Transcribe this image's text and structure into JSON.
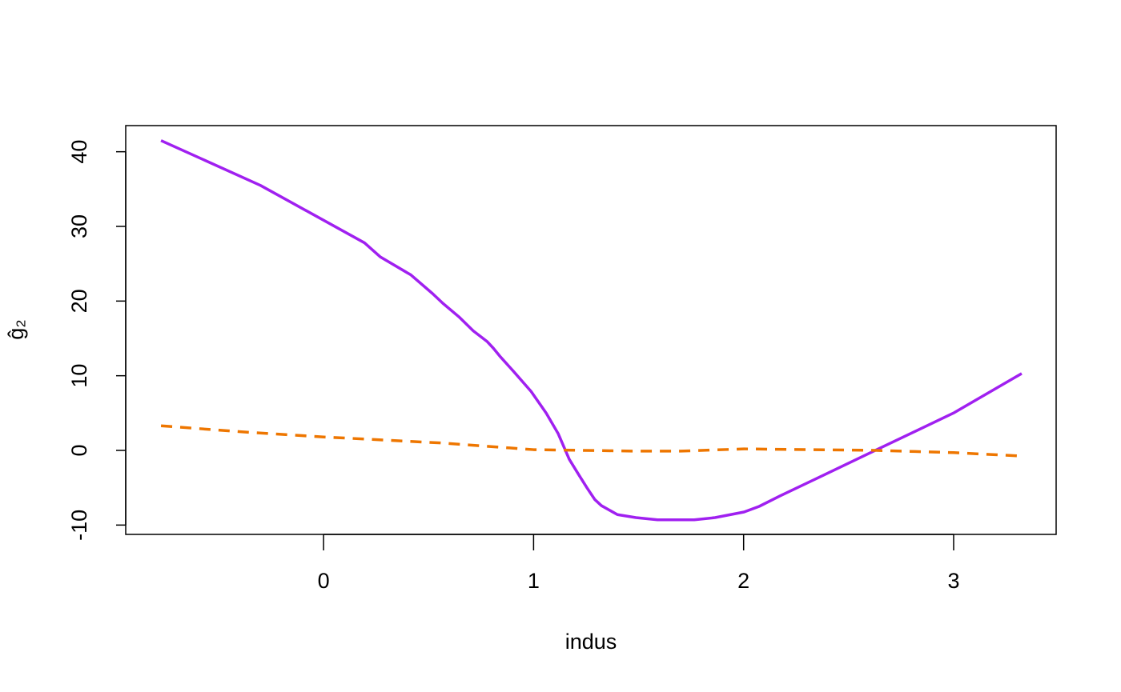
{
  "chart_data": {
    "type": "line",
    "xlabel": "indus",
    "ylabel": "ĝ₂",
    "xlim": [
      -0.942,
      3.488
    ],
    "ylim": [
      -11.25,
      43.5
    ],
    "xticks": [
      0,
      1,
      2,
      3
    ],
    "yticks": [
      -10,
      0,
      10,
      20,
      30,
      40
    ],
    "series": [
      {
        "color": "#a020f0",
        "dash": false,
        "x": [
          -0.774,
          -0.301,
          0.195,
          0.271,
          0.416,
          0.519,
          0.568,
          0.644,
          0.713,
          0.778,
          0.808,
          0.843,
          0.904,
          0.988,
          1.06,
          1.117,
          1.17,
          1.216,
          1.254,
          1.292,
          1.323,
          1.399,
          1.487,
          1.59,
          1.765,
          1.864,
          2.002,
          2.074,
          2.173,
          2.337,
          2.634,
          2.999,
          3.324
        ],
        "values": [
          41.5,
          35.5,
          27.8,
          25.9,
          23.5,
          21.0,
          19.7,
          17.9,
          16.0,
          14.6,
          13.7,
          12.5,
          10.6,
          7.9,
          5.0,
          2.25,
          -1.2,
          -3.3,
          -5.0,
          -6.6,
          -7.4,
          -8.6,
          -9.0,
          -9.3,
          -9.3,
          -9.0,
          -8.25,
          -7.5,
          -6.1,
          -3.9,
          0.1,
          5.0,
          10.3
        ]
      },
      {
        "color": "#ee7600",
        "dash": true,
        "x": [
          -0.774,
          -0.397,
          0.0,
          0.557,
          1.0,
          1.499,
          1.7,
          2.002,
          2.634,
          3.0,
          3.324
        ],
        "values": [
          3.3,
          2.5,
          1.8,
          1.0,
          0.1,
          -0.1,
          -0.1,
          0.2,
          0.0,
          -0.3,
          -0.75
        ]
      }
    ]
  }
}
